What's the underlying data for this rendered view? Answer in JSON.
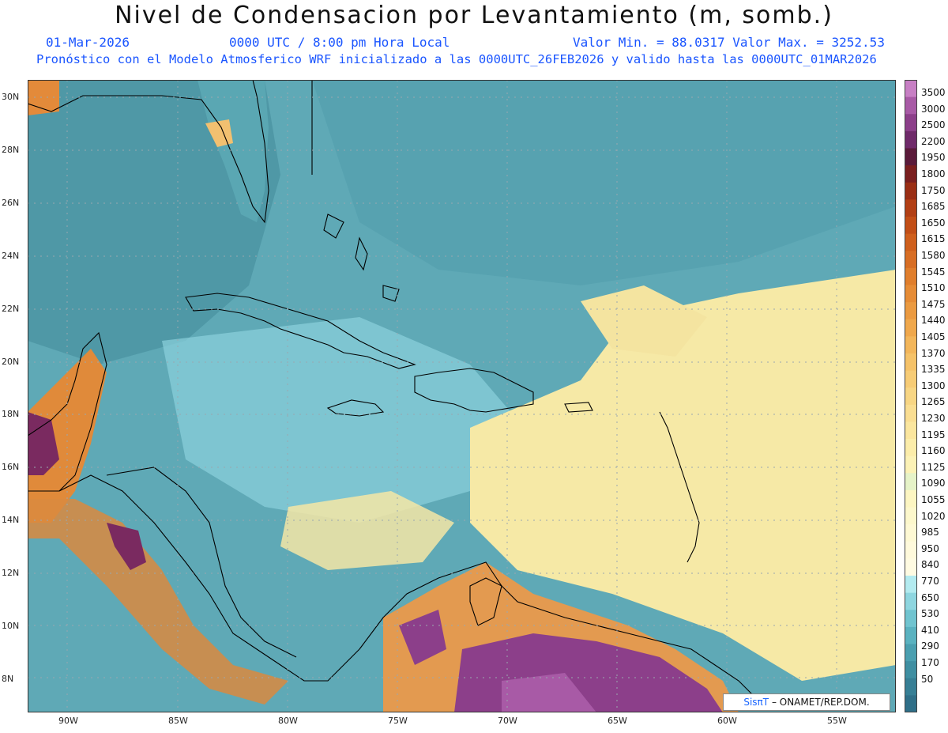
{
  "header": {
    "title": "Nivel de Condensacion por Levantamiento (m, somb.)",
    "date": "01-Mar-2026",
    "time": "0000 UTC / 8:00 pm Hora Local",
    "min_max": "Valor Min. = 88.0317  Valor Max. = 3252.53",
    "forecast_note": "Pronóstico con el Modelo Atmosferico WRF inicializado a las 0000UTC_26FEB2026 y valido hasta las  0000UTC_01MAR2026"
  },
  "map": {
    "lat_labels": [
      "30N",
      "28N",
      "26N",
      "24N",
      "22N",
      "20N",
      "18N",
      "16N",
      "14N",
      "12N",
      "10N",
      "8N"
    ],
    "lon_labels": [
      "90W",
      "85W",
      "80W",
      "75W",
      "70W",
      "65W",
      "60W",
      "55W"
    ],
    "credit_logo": "SisπT",
    "credit_text": "– ONAMET/REP.DOM."
  },
  "colorbar": {
    "labels": [
      "3500",
      "3000",
      "2500",
      "2200",
      "1950",
      "1800",
      "1750",
      "1685",
      "1650",
      "1615",
      "1580",
      "1545",
      "1510",
      "1475",
      "1440",
      "1405",
      "1370",
      "1335",
      "1300",
      "1265",
      "1230",
      "1195",
      "1160",
      "1125",
      "1090",
      "1055",
      "1020",
      "985",
      "950",
      "840",
      "770",
      "650",
      "530",
      "410",
      "290",
      "170",
      "50"
    ],
    "colors": [
      "#c77fc4",
      "#a85aa6",
      "#8c3f8a",
      "#6f2a6a",
      "#5a1a3a",
      "#7a1f1f",
      "#9a2e14",
      "#b23f14",
      "#c24e16",
      "#cf5f1c",
      "#d86e24",
      "#e07e2c",
      "#e68c36",
      "#eb9a40",
      "#f0a84c",
      "#f3b65a",
      "#f5c268",
      "#f7cc76",
      "#f8d684",
      "#fade92",
      "#fbe69e",
      "#fcedaa",
      "#fcf2b6",
      "#e6f3c8",
      "#fdf6c2",
      "#fdf8cc",
      "#fef9d4",
      "#fffadc",
      "#fffbe2",
      "#b3ebf0",
      "#8ed6e0",
      "#70c4d0",
      "#5ab2c0",
      "#4a9fb0",
      "#3f8fa2",
      "#377f95",
      "#2f6f88"
    ]
  }
}
